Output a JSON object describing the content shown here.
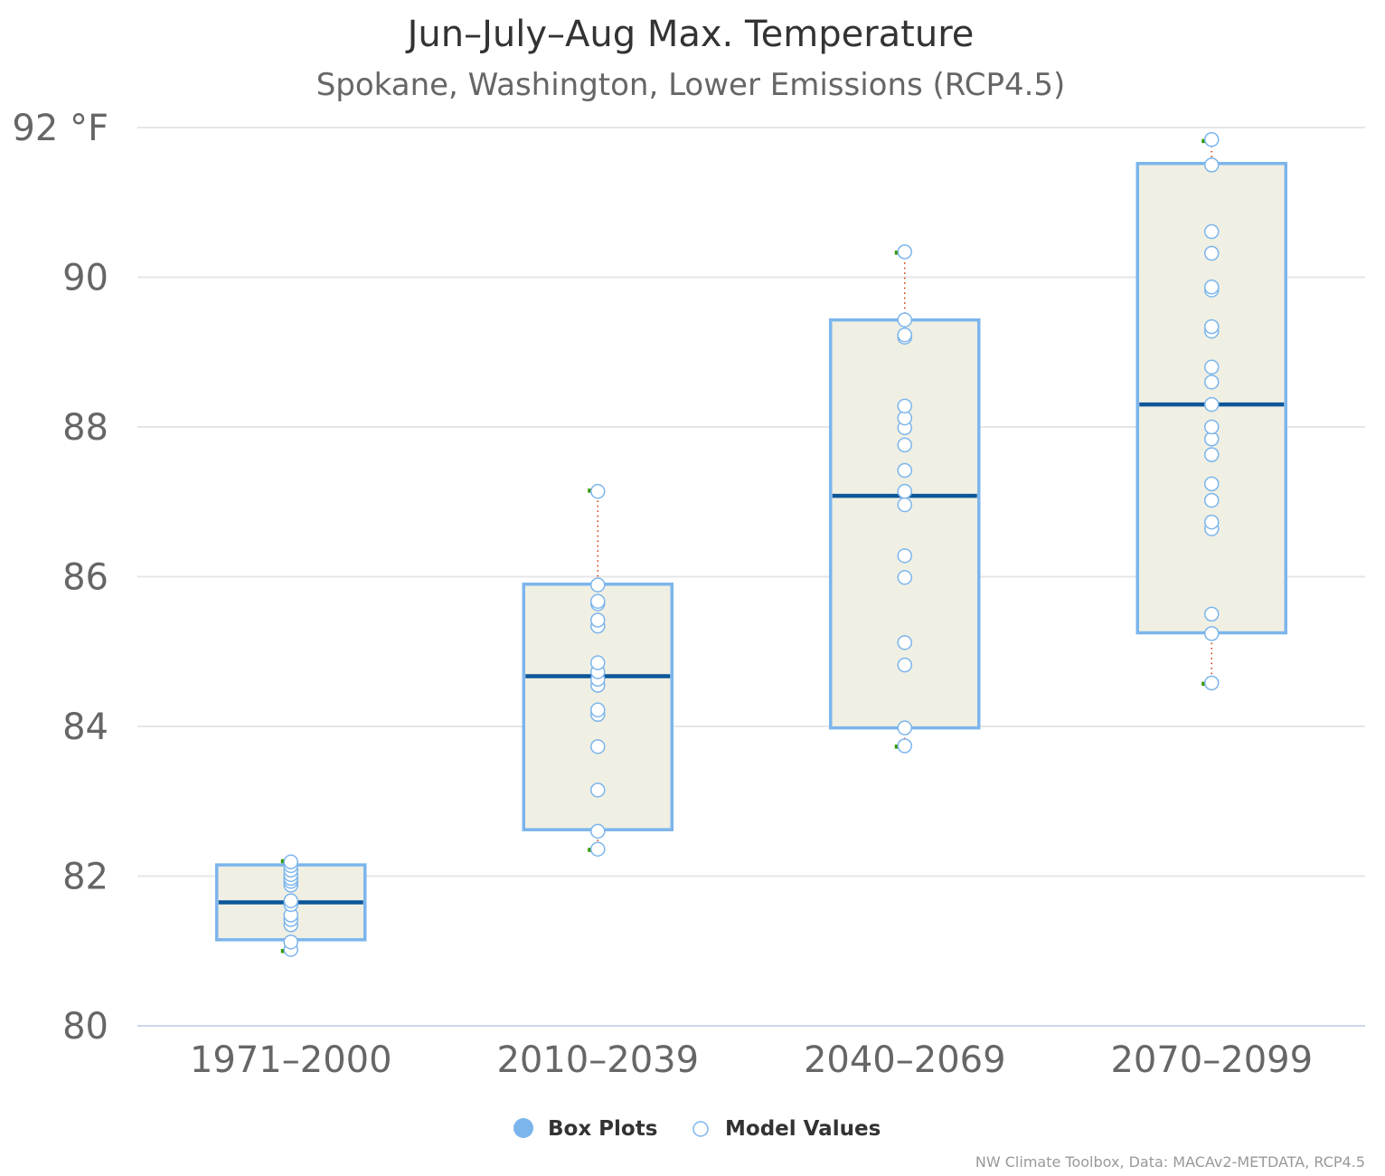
{
  "chart_data": {
    "type": "box",
    "title": "Jun–July–Aug Max. Temperature",
    "subtitle": "Spokane, Washington, Lower Emissions (RCP4.5)",
    "xlabel": "",
    "ylabel": "",
    "ylim": [
      80,
      92
    ],
    "y_unit_label": "°F",
    "y_ticks": [
      80,
      82,
      84,
      86,
      88,
      90,
      92
    ],
    "grid": true,
    "legend_position": "bottom-center",
    "credit": "NW Climate Toolbox, Data: MACAv2-METDATA, RCP4.5",
    "categories": [
      "1971–2000",
      "2010–2039",
      "2040–2069",
      "2070–2099"
    ],
    "series": [
      {
        "name": "Box Plots",
        "color": "#7cb5ec",
        "fill": "#efefe3",
        "median_color": "#0d5699",
        "whisker_color": "#339900",
        "stem_color": "#cc3300",
        "boxes": [
          {
            "low": 81.0,
            "q1": 81.15,
            "median": 81.65,
            "q3": 82.15,
            "high": 82.2
          },
          {
            "low": 82.35,
            "q1": 82.62,
            "median": 84.67,
            "q3": 85.9,
            "high": 87.15
          },
          {
            "low": 83.73,
            "q1": 83.98,
            "median": 87.08,
            "q3": 89.43,
            "high": 90.33
          },
          {
            "low": 84.57,
            "q1": 85.25,
            "median": 88.3,
            "q3": 91.52,
            "high": 91.82
          }
        ]
      },
      {
        "name": "Model Values",
        "color": "#7cb5ec",
        "points": [
          [
            81.02,
            81.12,
            81.35,
            81.42,
            81.48,
            81.62,
            81.67,
            81.88,
            81.93,
            81.97,
            82.02,
            82.08,
            82.14,
            82.19
          ],
          [
            82.36,
            82.6,
            83.15,
            83.73,
            84.16,
            84.22,
            84.55,
            84.63,
            84.73,
            84.85,
            85.34,
            85.42,
            85.64,
            85.67,
            85.89,
            87.14
          ],
          [
            83.74,
            83.98,
            84.82,
            85.12,
            85.99,
            86.28,
            86.96,
            87.14,
            87.42,
            87.76,
            87.99,
            88.12,
            88.28,
            89.2,
            89.23,
            89.43,
            90.34
          ],
          [
            84.58,
            85.24,
            85.5,
            86.64,
            86.73,
            87.02,
            87.24,
            87.63,
            87.84,
            88.0,
            88.3,
            88.6,
            88.8,
            89.28,
            89.34,
            89.83,
            89.87,
            90.32,
            90.61,
            91.5,
            91.84
          ]
        ]
      }
    ]
  },
  "legend": {
    "box_label": "Box Plots",
    "points_label": "Model Values"
  }
}
